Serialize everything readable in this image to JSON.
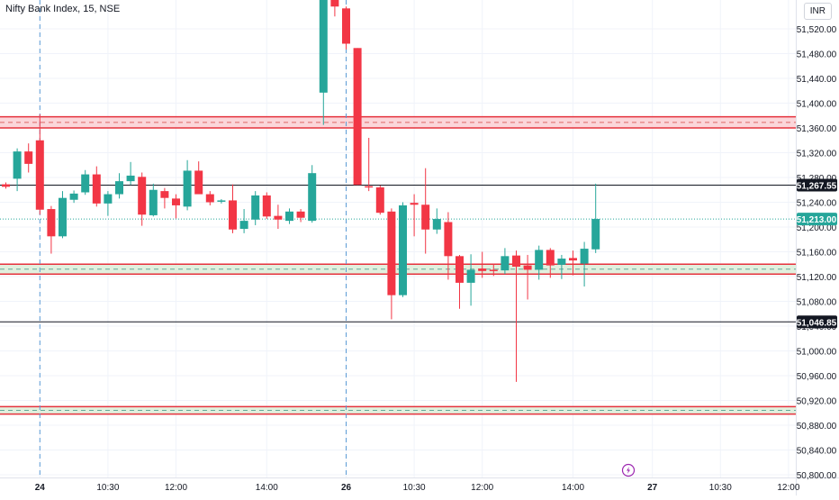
{
  "header": {
    "title": "Nifty Bank Index, 15, NSE",
    "currency": "INR"
  },
  "colors": {
    "up": "#26a69a",
    "down": "#f23645",
    "grid": "#f0f3fa",
    "axis_text": "#131722",
    "zone_red_fill": "#f9c8cd",
    "zone_red_line": "#e5323d",
    "zone_green_fill": "#d9ecd6",
    "session_line": "#5b9bd5",
    "flash_icon": "#9c27b0"
  },
  "chart_data": {
    "type": "candlestick",
    "title": "Nifty Bank Index, 15, NSE",
    "ylim": [
      50790,
      51580
    ],
    "y_ticks": [
      50800,
      50840,
      50880,
      50920,
      50960,
      51000,
      51040,
      51080,
      51120,
      51160,
      51200,
      51240,
      51280,
      51320,
      51360,
      51400,
      51440,
      51480,
      51520
    ],
    "y_tick_labels": [
      "50,800.00",
      "50,840.00",
      "50,880.00",
      "50,920.00",
      "50,960.00",
      "51,000.00",
      "51,040.00",
      "51,080.00",
      "51,120.00",
      "51,160.00",
      "51,200.00",
      "51,240.00",
      "51,280.00",
      "51,320.00",
      "51,360.00",
      "51,400.00",
      "51,440.00",
      "51,480.00",
      "51,520.00"
    ],
    "x_ticks": [
      {
        "bar": 3,
        "label": "24",
        "bold": true
      },
      {
        "bar": 9,
        "label": "10:30",
        "bold": false
      },
      {
        "bar": 15,
        "label": "12:00",
        "bold": false
      },
      {
        "bar": 23,
        "label": "14:00",
        "bold": false
      },
      {
        "bar": 30,
        "label": "26",
        "bold": true
      },
      {
        "bar": 36,
        "label": "10:30",
        "bold": false
      },
      {
        "bar": 42,
        "label": "12:00",
        "bold": false
      },
      {
        "bar": 50,
        "label": "14:00",
        "bold": false
      },
      {
        "bar": 57,
        "label": "27",
        "bold": true
      },
      {
        "bar": 63,
        "label": "10:30",
        "bold": false
      },
      {
        "bar": 69,
        "label": "12:00",
        "bold": false
      }
    ],
    "session_breaks": [
      3,
      30
    ],
    "candles": [
      {
        "o": 51269,
        "h": 51272,
        "l": 51262,
        "c": 51265
      },
      {
        "o": 51278,
        "h": 51327,
        "l": 51258,
        "c": 51322
      },
      {
        "o": 51322,
        "h": 51335,
        "l": 51288,
        "c": 51302
      },
      {
        "o": 51340,
        "h": 51382,
        "l": 51220,
        "c": 51228
      },
      {
        "o": 51229,
        "h": 51234,
        "l": 51157,
        "c": 51185
      },
      {
        "o": 51185,
        "h": 51258,
        "l": 51182,
        "c": 51247
      },
      {
        "o": 51244,
        "h": 51259,
        "l": 51239,
        "c": 51254
      },
      {
        "o": 51256,
        "h": 51292,
        "l": 51252,
        "c": 51285
      },
      {
        "o": 51285,
        "h": 51298,
        "l": 51233,
        "c": 51238
      },
      {
        "o": 51238,
        "h": 51258,
        "l": 51218,
        "c": 51253
      },
      {
        "o": 51253,
        "h": 51287,
        "l": 51246,
        "c": 51274
      },
      {
        "o": 51274,
        "h": 51305,
        "l": 51268,
        "c": 51283
      },
      {
        "o": 51281,
        "h": 51288,
        "l": 51202,
        "c": 51220
      },
      {
        "o": 51219,
        "h": 51270,
        "l": 51217,
        "c": 51260
      },
      {
        "o": 51258,
        "h": 51263,
        "l": 51230,
        "c": 51247
      },
      {
        "o": 51246,
        "h": 51253,
        "l": 51214,
        "c": 51235
      },
      {
        "o": 51233,
        "h": 51308,
        "l": 51227,
        "c": 51291
      },
      {
        "o": 51291,
        "h": 51306,
        "l": 51255,
        "c": 51253
      },
      {
        "o": 51253,
        "h": 51258,
        "l": 51235,
        "c": 51240
      },
      {
        "o": 51242,
        "h": 51245,
        "l": 51238,
        "c": 51243
      },
      {
        "o": 51243,
        "h": 51269,
        "l": 51190,
        "c": 51196
      },
      {
        "o": 51197,
        "h": 51229,
        "l": 51190,
        "c": 51210
      },
      {
        "o": 51212,
        "h": 51258,
        "l": 51203,
        "c": 51251
      },
      {
        "o": 51251,
        "h": 51256,
        "l": 51213,
        "c": 51217
      },
      {
        "o": 51218,
        "h": 51236,
        "l": 51197,
        "c": 51212
      },
      {
        "o": 51210,
        "h": 51230,
        "l": 51205,
        "c": 51225
      },
      {
        "o": 51225,
        "h": 51229,
        "l": 51208,
        "c": 51215
      },
      {
        "o": 51210,
        "h": 51300,
        "l": 51207,
        "c": 51287
      },
      {
        "o": 51417,
        "h": 51580,
        "l": 51365,
        "c": 51580
      },
      {
        "o": 51580,
        "h": 51580,
        "l": 51540,
        "c": 51556
      },
      {
        "o": 51553,
        "h": 51556,
        "l": 51487,
        "c": 51496
      },
      {
        "o": 51489,
        "h": 51489,
        "l": 51268,
        "c": 51268
      },
      {
        "o": 51266,
        "h": 51344,
        "l": 51258,
        "c": 51265
      },
      {
        "o": 51264,
        "h": 51267,
        "l": 51220,
        "c": 51223
      },
      {
        "o": 51225,
        "h": 51230,
        "l": 51051,
        "c": 51090
      },
      {
        "o": 51090,
        "h": 51240,
        "l": 51087,
        "c": 51235
      },
      {
        "o": 51239,
        "h": 51253,
        "l": 51185,
        "c": 51236
      },
      {
        "o": 51236,
        "h": 51295,
        "l": 51157,
        "c": 51196
      },
      {
        "o": 51196,
        "h": 51230,
        "l": 51189,
        "c": 51213
      },
      {
        "o": 51208,
        "h": 51224,
        "l": 51115,
        "c": 51153
      },
      {
        "o": 51153,
        "h": 51155,
        "l": 51068,
        "c": 51110
      },
      {
        "o": 51110,
        "h": 51156,
        "l": 51073,
        "c": 51131
      },
      {
        "o": 51133,
        "h": 51160,
        "l": 51118,
        "c": 51129
      },
      {
        "o": 51131,
        "h": 51141,
        "l": 51121,
        "c": 51130
      },
      {
        "o": 51130,
        "h": 51166,
        "l": 51124,
        "c": 51153
      },
      {
        "o": 51154,
        "h": 51162,
        "l": 50950,
        "c": 51136
      },
      {
        "o": 51138,
        "h": 51155,
        "l": 51083,
        "c": 51131
      },
      {
        "o": 51131,
        "h": 51170,
        "l": 51115,
        "c": 51163
      },
      {
        "o": 51163,
        "h": 51166,
        "l": 51118,
        "c": 51138
      },
      {
        "o": 51139,
        "h": 51155,
        "l": 51116,
        "c": 51149
      },
      {
        "o": 51150,
        "h": 51162,
        "l": 51122,
        "c": 51146
      },
      {
        "o": 51141,
        "h": 51176,
        "l": 51104,
        "c": 51165
      },
      {
        "o": 51164,
        "h": 51270,
        "l": 51158,
        "c": 51213
      }
    ],
    "zones": [
      {
        "kind": "resistance",
        "top": 51378,
        "bottom": 51360
      },
      {
        "kind": "support",
        "top": 51140,
        "bottom": 51124
      },
      {
        "kind": "support",
        "top": 50910,
        "bottom": 50898
      }
    ],
    "horizontal_lines": [
      {
        "value": 51267.55,
        "label": "51,267.55",
        "style": "solid-black"
      },
      {
        "value": 51046.85,
        "label": "51,046.85",
        "style": "solid-black"
      }
    ],
    "current_price": {
      "value": 51213.0,
      "label": "51,213.00"
    }
  },
  "footer": {
    "flash_icon": "lightning-icon"
  }
}
